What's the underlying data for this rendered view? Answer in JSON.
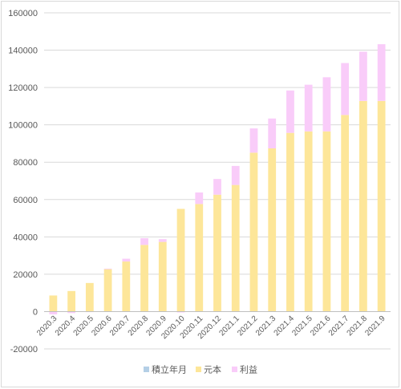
{
  "chart_data": {
    "type": "bar",
    "stacked": true,
    "categories": [
      "2020.3",
      "2020.4",
      "2020.5",
      "2020.6",
      "2020.7",
      "2020.8",
      "2020.9",
      "2020.10",
      "2020.11",
      "2020.12",
      "2021.1",
      "2021.2",
      "2021.3",
      "2021.4",
      "2021.5",
      "2021.6",
      "2021.7",
      "2021.8",
      "2021.9"
    ],
    "series": [
      {
        "name": "積立年月",
        "color": "#b4cfe6",
        "values": [
          0,
          0,
          0,
          0,
          0,
          0,
          0,
          0,
          0,
          0,
          0,
          0,
          0,
          0,
          0,
          0,
          0,
          0,
          0
        ]
      },
      {
        "name": "元本",
        "color": "#fde699",
        "values": [
          8600,
          11000,
          15300,
          22700,
          26800,
          35700,
          37300,
          55000,
          57600,
          62600,
          67800,
          85100,
          87400,
          95700,
          96500,
          96500,
          105300,
          112800,
          112800
        ]
      },
      {
        "name": "利益",
        "color": "#f9ccf9",
        "values": [
          -1500,
          -800,
          -300,
          300,
          1500,
          3600,
          1500,
          -500,
          6200,
          8400,
          10200,
          13000,
          16000,
          22700,
          25000,
          29000,
          27800,
          26400,
          30400
        ]
      }
    ],
    "yticks": [
      "-20000",
      "0",
      "20000",
      "40000",
      "60000",
      "80000",
      "100000",
      "120000",
      "140000",
      "160000"
    ],
    "ylim": [
      -20000,
      160000
    ],
    "grid": true,
    "legend_position": "bottom"
  }
}
